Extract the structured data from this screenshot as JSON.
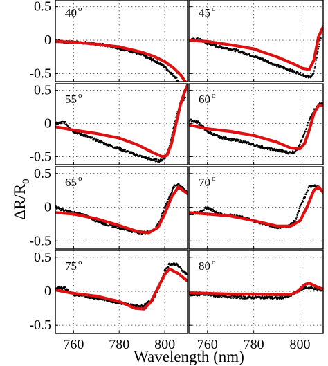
{
  "chart_data": {
    "type": "line",
    "title": "",
    "xlabel": "Wavelength (nm)",
    "ylabel": "ΔR/R",
    "ylabel_subscript": "0",
    "xlim": [
      752,
      810
    ],
    "ylim": [
      -0.62,
      0.6
    ],
    "xticks": [
      760,
      780,
      800
    ],
    "xtick_labels": [
      "760",
      "780",
      "800"
    ],
    "yticks": [
      0.5,
      0,
      -0.5
    ],
    "ytick_labels": [
      "0.5",
      "0",
      "-0.5"
    ],
    "grid": true,
    "layout": "4 rows x 2 columns",
    "series_styles": {
      "fit": {
        "color": "#dd1111",
        "style": "solid line"
      },
      "measured": {
        "color": "#000000",
        "style": "dots"
      }
    },
    "panels": [
      {
        "angle": "40",
        "degree_symbol": "o",
        "fit": [
          [
            752,
            -0.02
          ],
          [
            760,
            -0.03
          ],
          [
            770,
            -0.06
          ],
          [
            780,
            -0.1
          ],
          [
            790,
            -0.18
          ],
          [
            795,
            -0.24
          ],
          [
            800,
            -0.32
          ],
          [
            804,
            -0.42
          ],
          [
            807,
            -0.52
          ],
          [
            809,
            -0.62
          ]
        ],
        "measured": [
          [
            752,
            0.0
          ],
          [
            756,
            -0.03
          ],
          [
            760,
            -0.03
          ],
          [
            765,
            -0.04
          ],
          [
            770,
            -0.06
          ],
          [
            775,
            -0.08
          ],
          [
            780,
            -0.12
          ],
          [
            785,
            -0.16
          ],
          [
            790,
            -0.22
          ],
          [
            795,
            -0.3
          ],
          [
            798,
            -0.35
          ],
          [
            800,
            -0.4
          ],
          [
            803,
            -0.5
          ],
          [
            805,
            -0.56
          ],
          [
            806,
            -0.62
          ]
        ]
      },
      {
        "angle": "45",
        "degree_symbol": "o",
        "fit": [
          [
            752,
            0.0
          ],
          [
            760,
            -0.02
          ],
          [
            770,
            -0.07
          ],
          [
            780,
            -0.13
          ],
          [
            790,
            -0.25
          ],
          [
            797,
            -0.35
          ],
          [
            801,
            -0.42
          ],
          [
            804,
            -0.44
          ],
          [
            806,
            -0.3
          ],
          [
            808,
            0.05
          ],
          [
            810,
            0.2
          ]
        ],
        "measured": [
          [
            752,
            0.0
          ],
          [
            756,
            0.02
          ],
          [
            760,
            -0.05
          ],
          [
            765,
            -0.1
          ],
          [
            770,
            -0.13
          ],
          [
            775,
            -0.18
          ],
          [
            780,
            -0.24
          ],
          [
            785,
            -0.3
          ],
          [
            790,
            -0.38
          ],
          [
            795,
            -0.44
          ],
          [
            800,
            -0.5
          ],
          [
            804,
            -0.56
          ],
          [
            806,
            -0.5
          ],
          [
            807,
            -0.3
          ],
          [
            808,
            -0.1
          ],
          [
            809,
            0.05
          ]
        ]
      },
      {
        "angle": "55",
        "degree_symbol": "o",
        "fit": [
          [
            752,
            -0.05
          ],
          [
            760,
            -0.1
          ],
          [
            770,
            -0.15
          ],
          [
            780,
            -0.22
          ],
          [
            788,
            -0.32
          ],
          [
            795,
            -0.44
          ],
          [
            799,
            -0.5
          ],
          [
            801,
            -0.48
          ],
          [
            803,
            -0.3
          ],
          [
            805,
            0.0
          ],
          [
            807,
            0.3
          ],
          [
            809,
            0.5
          ],
          [
            810,
            0.58
          ]
        ],
        "measured": [
          [
            752,
            0.0
          ],
          [
            756,
            0.02
          ],
          [
            760,
            -0.12
          ],
          [
            765,
            -0.18
          ],
          [
            770,
            -0.25
          ],
          [
            775,
            -0.32
          ],
          [
            780,
            -0.38
          ],
          [
            785,
            -0.44
          ],
          [
            790,
            -0.5
          ],
          [
            795,
            -0.55
          ],
          [
            798,
            -0.56
          ],
          [
            800,
            -0.52
          ],
          [
            802,
            -0.35
          ],
          [
            804,
            -0.05
          ],
          [
            806,
            0.2
          ],
          [
            808,
            0.35
          ],
          [
            809,
            0.4
          ]
        ]
      },
      {
        "angle": "60",
        "degree_symbol": "o",
        "fit": [
          [
            752,
            -0.02
          ],
          [
            760,
            -0.08
          ],
          [
            770,
            -0.12
          ],
          [
            780,
            -0.18
          ],
          [
            790,
            -0.28
          ],
          [
            796,
            -0.37
          ],
          [
            800,
            -0.38
          ],
          [
            802,
            -0.3
          ],
          [
            804,
            -0.1
          ],
          [
            806,
            0.15
          ],
          [
            808,
            0.27
          ],
          [
            810,
            0.27
          ]
        ],
        "measured": [
          [
            752,
            0.05
          ],
          [
            756,
            0.02
          ],
          [
            760,
            -0.12
          ],
          [
            765,
            -0.2
          ],
          [
            770,
            -0.24
          ],
          [
            775,
            -0.27
          ],
          [
            780,
            -0.32
          ],
          [
            785,
            -0.37
          ],
          [
            790,
            -0.4
          ],
          [
            795,
            -0.44
          ],
          [
            798,
            -0.42
          ],
          [
            800,
            -0.3
          ],
          [
            802,
            -0.15
          ],
          [
            804,
            0.05
          ],
          [
            806,
            0.2
          ],
          [
            808,
            0.28
          ],
          [
            810,
            0.32
          ]
        ]
      },
      {
        "angle": "65",
        "degree_symbol": "o",
        "fit": [
          [
            752,
            -0.08
          ],
          [
            760,
            -0.1
          ],
          [
            770,
            -0.17
          ],
          [
            780,
            -0.27
          ],
          [
            788,
            -0.36
          ],
          [
            793,
            -0.38
          ],
          [
            797,
            -0.3
          ],
          [
            800,
            -0.1
          ],
          [
            803,
            0.15
          ],
          [
            806,
            0.3
          ],
          [
            810,
            0.2
          ]
        ],
        "measured": [
          [
            752,
            0.0
          ],
          [
            756,
            -0.05
          ],
          [
            760,
            -0.08
          ],
          [
            765,
            -0.12
          ],
          [
            770,
            -0.2
          ],
          [
            775,
            -0.26
          ],
          [
            780,
            -0.3
          ],
          [
            785,
            -0.35
          ],
          [
            790,
            -0.38
          ],
          [
            795,
            -0.35
          ],
          [
            798,
            -0.2
          ],
          [
            800,
            0.0
          ],
          [
            802,
            0.15
          ],
          [
            804,
            0.3
          ],
          [
            806,
            0.35
          ],
          [
            808,
            0.28
          ],
          [
            810,
            0.22
          ]
        ]
      },
      {
        "angle": "70",
        "degree_symbol": "o",
        "fit": [
          [
            752,
            -0.08
          ],
          [
            760,
            -0.1
          ],
          [
            770,
            -0.13
          ],
          [
            780,
            -0.2
          ],
          [
            790,
            -0.28
          ],
          [
            796,
            -0.28
          ],
          [
            800,
            -0.2
          ],
          [
            803,
            0.0
          ],
          [
            806,
            0.25
          ],
          [
            808,
            0.3
          ],
          [
            810,
            0.22
          ]
        ],
        "measured": [
          [
            752,
            -0.1
          ],
          [
            756,
            -0.08
          ],
          [
            760,
            0.0
          ],
          [
            765,
            -0.1
          ],
          [
            770,
            -0.12
          ],
          [
            775,
            -0.15
          ],
          [
            780,
            -0.2
          ],
          [
            785,
            -0.25
          ],
          [
            790,
            -0.3
          ],
          [
            795,
            -0.28
          ],
          [
            798,
            -0.2
          ],
          [
            800,
            0.0
          ],
          [
            802,
            0.15
          ],
          [
            804,
            0.3
          ],
          [
            806,
            0.33
          ],
          [
            808,
            0.28
          ],
          [
            810,
            0.22
          ]
        ]
      },
      {
        "angle": "75",
        "degree_symbol": "o",
        "fit": [
          [
            752,
            0.02
          ],
          [
            760,
            -0.03
          ],
          [
            770,
            -0.07
          ],
          [
            780,
            -0.15
          ],
          [
            787,
            -0.25
          ],
          [
            791,
            -0.26
          ],
          [
            794,
            -0.15
          ],
          [
            797,
            0.05
          ],
          [
            800,
            0.25
          ],
          [
            802,
            0.33
          ],
          [
            806,
            0.26
          ],
          [
            810,
            0.15
          ]
        ],
        "measured": [
          [
            752,
            0.05
          ],
          [
            756,
            0.05
          ],
          [
            760,
            -0.05
          ],
          [
            765,
            -0.07
          ],
          [
            770,
            -0.1
          ],
          [
            775,
            -0.13
          ],
          [
            780,
            -0.17
          ],
          [
            785,
            -0.2
          ],
          [
            790,
            -0.22
          ],
          [
            795,
            -0.12
          ],
          [
            798,
            0.1
          ],
          [
            800,
            0.3
          ],
          [
            802,
            0.4
          ],
          [
            805,
            0.4
          ],
          [
            808,
            0.3
          ],
          [
            810,
            0.25
          ]
        ]
      },
      {
        "angle": "80",
        "degree_symbol": "o",
        "fit": [
          [
            752,
            -0.02
          ],
          [
            760,
            -0.03
          ],
          [
            770,
            -0.04
          ],
          [
            780,
            -0.04
          ],
          [
            790,
            -0.05
          ],
          [
            796,
            -0.05
          ],
          [
            799,
            0.0
          ],
          [
            802,
            0.1
          ],
          [
            804,
            0.12
          ],
          [
            807,
            0.07
          ],
          [
            810,
            0.03
          ]
        ],
        "measured": [
          [
            752,
            -0.05
          ],
          [
            756,
            -0.05
          ],
          [
            760,
            -0.05
          ],
          [
            765,
            -0.07
          ],
          [
            770,
            -0.08
          ],
          [
            775,
            -0.09
          ],
          [
            780,
            -0.09
          ],
          [
            785,
            -0.09
          ],
          [
            790,
            -0.1
          ],
          [
            795,
            -0.08
          ],
          [
            798,
            -0.02
          ],
          [
            800,
            0.02
          ],
          [
            802,
            0.05
          ],
          [
            805,
            0.05
          ],
          [
            808,
            0.03
          ],
          [
            810,
            0.02
          ]
        ]
      }
    ]
  }
}
